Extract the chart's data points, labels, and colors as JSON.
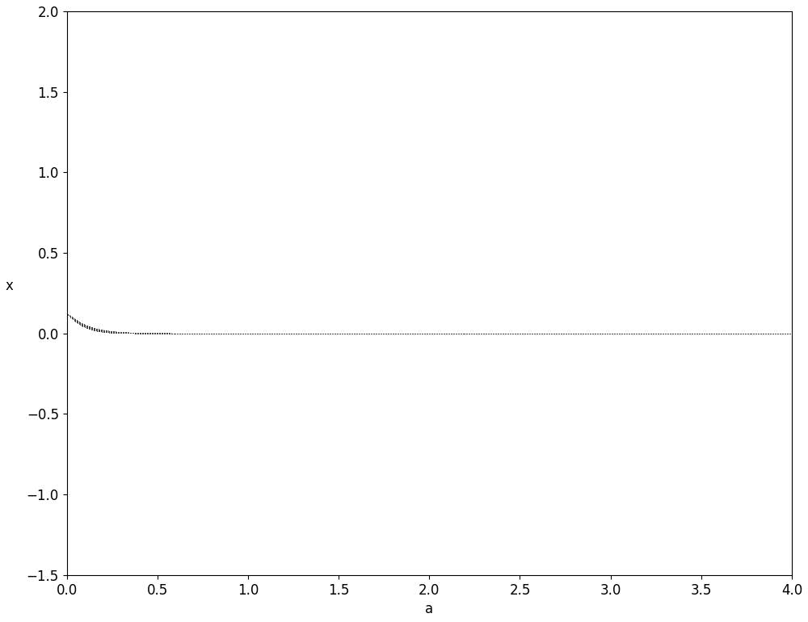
{
  "title": "",
  "xlabel": "a",
  "ylabel": "x",
  "xlim": [
    0,
    4
  ],
  "ylim": [
    -1.5,
    2
  ],
  "xticks": [
    0,
    0.5,
    1,
    1.5,
    2,
    2.5,
    3,
    3.5,
    4
  ],
  "yticks": [
    -1.5,
    -1,
    -0.5,
    0,
    0.5,
    1,
    1.5,
    2
  ],
  "a_start": 0.0,
  "a_end": 4.0,
  "a_steps": 600,
  "n_iter": 500,
  "n_discard": 1000,
  "figsize": [
    10,
    7.7
  ],
  "dpi": 100,
  "dot_color": "#444444",
  "dot_size": 0.08,
  "dot_alpha": 0.5,
  "background_color": "#ffffff",
  "font_size": 12
}
